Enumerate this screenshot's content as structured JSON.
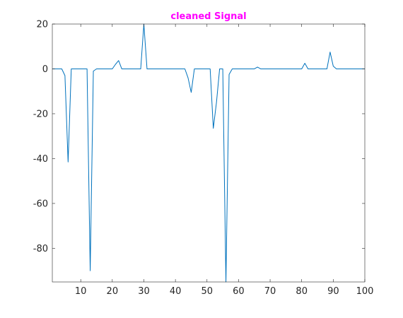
{
  "chart_data": {
    "type": "line",
    "title": "cleaned Signal",
    "title_color": "#ff00ff",
    "line_color": "#0072bd",
    "grid": false,
    "xlim": [
      1,
      100
    ],
    "ylim": [
      -95,
      20
    ],
    "xticks": [
      10,
      20,
      30,
      40,
      50,
      60,
      70,
      80,
      90,
      100
    ],
    "xtick_labels": [
      "10",
      "20",
      "30",
      "40",
      "50",
      "60",
      "70",
      "80",
      "90",
      "100"
    ],
    "yticks": [
      20,
      0,
      -20,
      -40,
      -60,
      -80
    ],
    "ytick_labels": [
      "20",
      "0",
      "-20",
      "-40",
      "-60",
      "-80"
    ],
    "series": [
      {
        "x": [
          1,
          2,
          3,
          4,
          5,
          6,
          7,
          8,
          9,
          10,
          11,
          12,
          13,
          14,
          15,
          16,
          17,
          18,
          19,
          20,
          21,
          22,
          23,
          24,
          25,
          26,
          27,
          28,
          29,
          30,
          31,
          32,
          33,
          34,
          35,
          36,
          37,
          38,
          39,
          40,
          41,
          42,
          43,
          44,
          45,
          46,
          47,
          48,
          49,
          50,
          51,
          52,
          53,
          54,
          55,
          56,
          57,
          58,
          59,
          60,
          61,
          62,
          63,
          64,
          65,
          66,
          67,
          68,
          69,
          70,
          71,
          72,
          73,
          74,
          75,
          76,
          77,
          78,
          79,
          80,
          81,
          82,
          83,
          84,
          85,
          86,
          87,
          88,
          89,
          90,
          91,
          92,
          93,
          94,
          95,
          96,
          97,
          98,
          99,
          100
        ],
        "y": [
          0,
          0,
          0,
          0,
          -3,
          -41.5,
          0,
          0,
          0,
          0,
          0,
          0,
          -90,
          -1,
          0,
          0,
          0,
          0,
          0,
          0,
          2,
          3.7,
          0,
          0,
          0,
          0,
          0,
          0,
          0,
          20,
          0,
          0,
          0,
          0,
          0,
          0,
          0,
          0,
          0,
          0,
          0,
          0,
          0,
          -4,
          -10.5,
          0,
          0,
          0,
          0,
          0,
          0,
          -26.5,
          -15,
          0,
          0,
          -95,
          -2.5,
          0,
          0,
          0,
          0,
          0,
          0,
          0,
          0,
          0.8,
          0,
          0,
          0,
          0,
          0,
          0,
          0,
          0,
          0,
          0,
          0,
          0,
          0,
          0,
          2.5,
          0,
          0,
          0,
          0,
          0,
          0,
          0,
          7.5,
          1.2,
          0,
          0,
          0,
          0,
          0,
          0,
          0,
          0,
          0,
          0
        ]
      }
    ]
  }
}
